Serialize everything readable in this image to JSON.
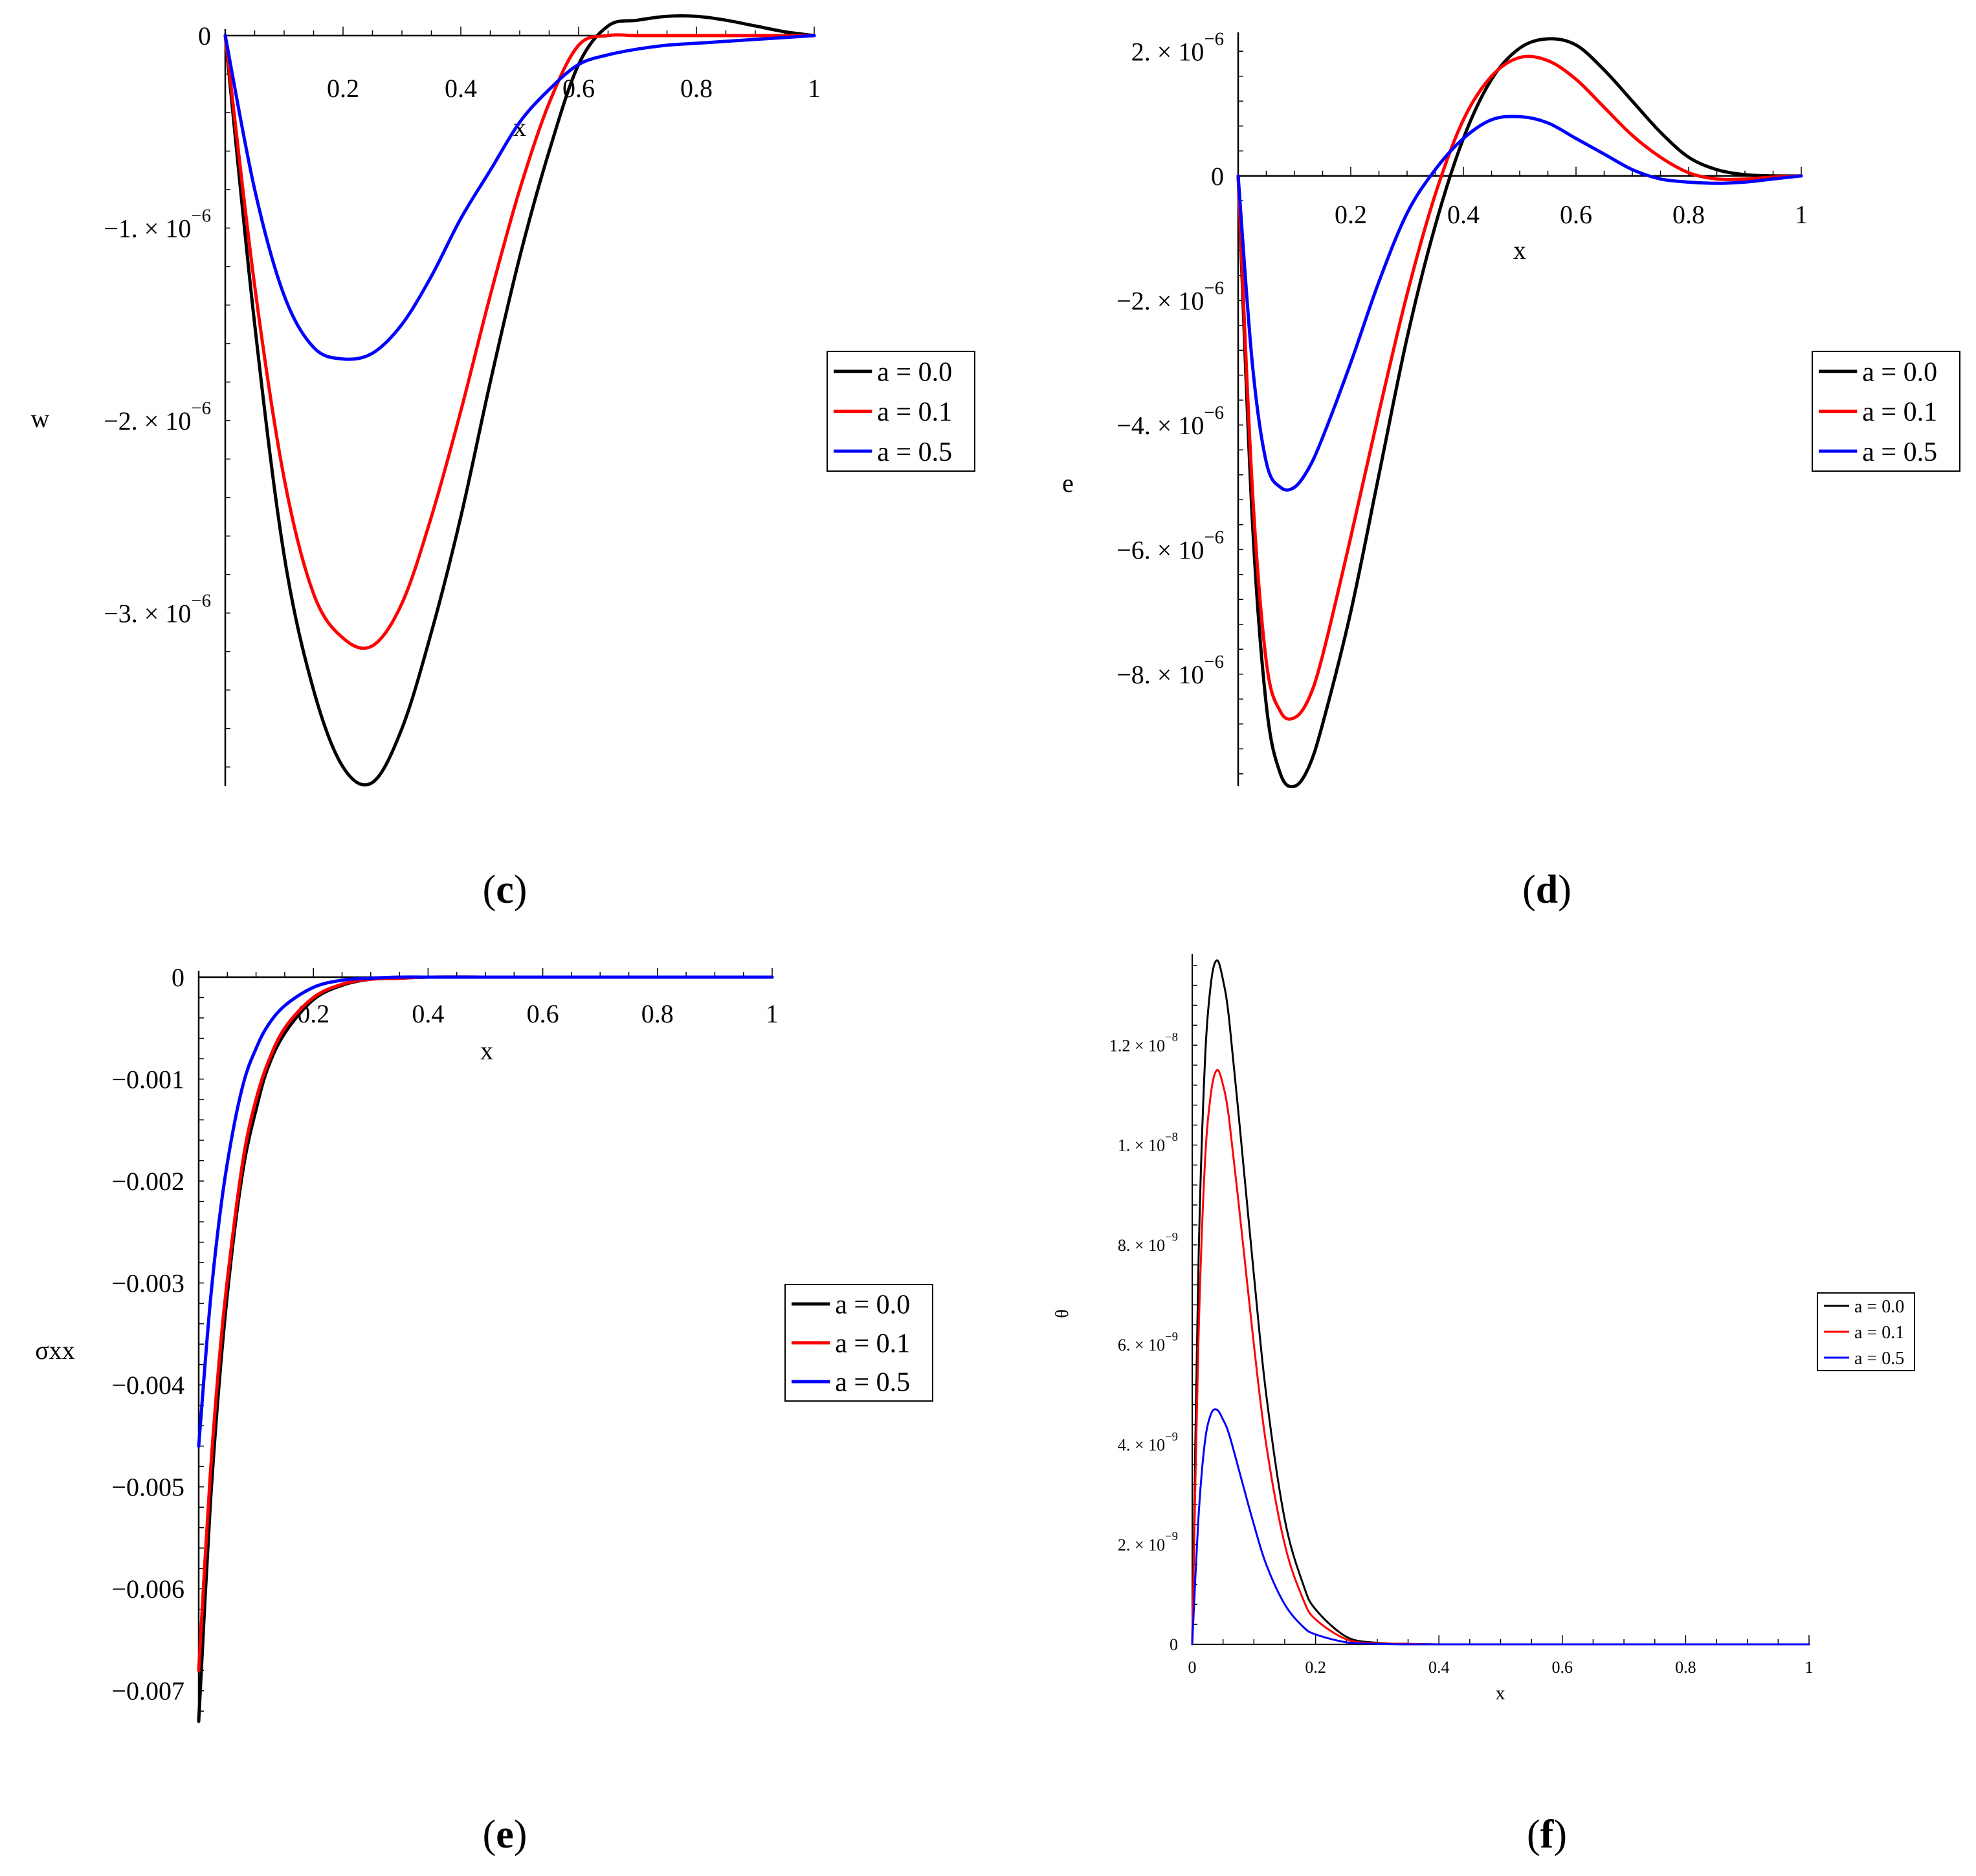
{
  "figure": {
    "panels": [
      {
        "id": "c",
        "caption_open": "(",
        "caption_letter": "c",
        "caption_close": ")"
      },
      {
        "id": "d",
        "caption_open": "(",
        "caption_letter": "d",
        "caption_close": ")"
      },
      {
        "id": "e",
        "caption_open": "(",
        "caption_letter": "e",
        "caption_close": ")"
      },
      {
        "id": "f",
        "caption_open": "(",
        "caption_letter": "f",
        "caption_close": ")"
      }
    ]
  },
  "colors": {
    "a0": "#000000",
    "a1": "#ff0000",
    "a5": "#0000ff"
  },
  "chart_data": [
    {
      "panel": "c",
      "type": "line",
      "xlabel": "x",
      "ylabel": "w",
      "xlim": [
        0,
        1
      ],
      "ylim": [
        -3.9e-06,
        0
      ],
      "xticks": [
        {
          "value": 0.2,
          "label": "0.2"
        },
        {
          "value": 0.4,
          "label": "0.4"
        },
        {
          "value": 0.6,
          "label": "0.6"
        },
        {
          "value": 0.8,
          "label": "0.8"
        },
        {
          "value": 1.0,
          "label": "1"
        }
      ],
      "yticks": [
        {
          "value": 0,
          "mant": "0",
          "exp": ""
        },
        {
          "value": -1e-06,
          "mant": "−1. × 10",
          "exp": "−6"
        },
        {
          "value": -2e-06,
          "mant": "−2. × 10",
          "exp": "−6"
        },
        {
          "value": -3e-06,
          "mant": "−3. × 10",
          "exp": "−6"
        }
      ],
      "legend": [
        "a = 0.0",
        "a = 0.1",
        "a = 0.5"
      ],
      "series": [
        {
          "name": "a = 0.0",
          "color": "#000000",
          "x": [
            0,
            0.05,
            0.1,
            0.15,
            0.2,
            0.25,
            0.3,
            0.35,
            0.4,
            0.45,
            0.5,
            0.55,
            0.6,
            0.65,
            0.7,
            0.75,
            0.8,
            0.85,
            0.9,
            0.95,
            1.0
          ],
          "y": [
            0,
            -1.5e-06,
            -2.7e-06,
            -3.4e-06,
            -3.8e-06,
            -3.88e-06,
            -3.6e-06,
            -3.1e-06,
            -2.5e-06,
            -1.8e-06,
            -1.15e-06,
            -6e-07,
            -1.5e-07,
            5e-08,
            8e-08,
            1e-07,
            1e-07,
            8e-08,
            5e-08,
            2e-08,
            0
          ]
        },
        {
          "name": "a = 0.1",
          "color": "#ff0000",
          "x": [
            0,
            0.05,
            0.1,
            0.15,
            0.2,
            0.25,
            0.3,
            0.35,
            0.4,
            0.45,
            0.5,
            0.55,
            0.6,
            0.65,
            0.7,
            0.75,
            0.8,
            0.85,
            0.9,
            0.95,
            1.0
          ],
          "y": [
            0,
            -1.3e-06,
            -2.3e-06,
            -2.9e-06,
            -3.13e-06,
            -3.17e-06,
            -2.95e-06,
            -2.5e-06,
            -1.95e-06,
            -1.35e-06,
            -8e-07,
            -3.5e-07,
            -5e-08,
            0.0,
            0.0,
            0.0,
            0.0,
            0.0,
            0.0,
            0.0,
            0
          ]
        },
        {
          "name": "a = 0.5",
          "color": "#0000ff",
          "x": [
            0,
            0.05,
            0.1,
            0.15,
            0.2,
            0.25,
            0.3,
            0.35,
            0.4,
            0.45,
            0.5,
            0.55,
            0.6,
            0.65,
            0.7,
            0.75,
            0.8,
            0.85,
            0.9,
            0.95,
            1.0
          ],
          "y": [
            0,
            -8e-07,
            -1.35e-06,
            -1.62e-06,
            -1.68e-06,
            -1.65e-06,
            -1.5e-06,
            -1.25e-06,
            -9.5e-07,
            -7e-07,
            -4.5e-07,
            -2.8e-07,
            -1.5e-07,
            -1e-07,
            -7e-08,
            -5e-08,
            -4e-08,
            -3e-08,
            -2e-08,
            -1e-08,
            0
          ]
        }
      ]
    },
    {
      "panel": "d",
      "type": "line",
      "xlabel": "x",
      "ylabel": "e",
      "xlim": [
        0,
        1
      ],
      "ylim": [
        -9.8e-06,
        2.2e-06
      ],
      "xticks": [
        {
          "value": 0.2,
          "label": "0.2"
        },
        {
          "value": 0.4,
          "label": "0.4"
        },
        {
          "value": 0.6,
          "label": "0.6"
        },
        {
          "value": 0.8,
          "label": "0.8"
        },
        {
          "value": 1.0,
          "label": "1"
        }
      ],
      "yticks": [
        {
          "value": 2e-06,
          "mant": "2. × 10",
          "exp": "−6"
        },
        {
          "value": 0,
          "mant": "0",
          "exp": ""
        },
        {
          "value": -2e-06,
          "mant": "−2. × 10",
          "exp": "−6"
        },
        {
          "value": -4e-06,
          "mant": "−4. × 10",
          "exp": "−6"
        },
        {
          "value": -6e-06,
          "mant": "−6. × 10",
          "exp": "−6"
        },
        {
          "value": -8e-06,
          "mant": "−8. × 10",
          "exp": "−6"
        }
      ],
      "legend": [
        "a = 0.0",
        "a = 0.1",
        "a = 0.5"
      ],
      "series": [
        {
          "name": "a = 0.0",
          "color": "#000000",
          "x": [
            0,
            0.025,
            0.05,
            0.075,
            0.1,
            0.125,
            0.15,
            0.2,
            0.25,
            0.3,
            0.35,
            0.4,
            0.45,
            0.5,
            0.55,
            0.6,
            0.65,
            0.7,
            0.75,
            0.8,
            0.85,
            0.9,
            0.95,
            1.0
          ],
          "y": [
            0,
            -5.5e-06,
            -8.5e-06,
            -9.6e-06,
            -9.8e-06,
            -9.5e-06,
            -8.8e-06,
            -7e-06,
            -4.8e-06,
            -2.6e-06,
            -8e-07,
            6e-07,
            1.55e-06,
            2.05e-06,
            2.2e-06,
            2.1e-06,
            1.7e-06,
            1.2e-06,
            7e-07,
            3e-07,
            1e-07,
            2e-08,
            0.0,
            0
          ]
        },
        {
          "name": "a = 0.1",
          "color": "#ff0000",
          "x": [
            0,
            0.025,
            0.05,
            0.075,
            0.1,
            0.125,
            0.15,
            0.2,
            0.25,
            0.3,
            0.35,
            0.4,
            0.45,
            0.5,
            0.55,
            0.6,
            0.65,
            0.7,
            0.75,
            0.8,
            0.85,
            0.9,
            0.95,
            1.0
          ],
          "y": [
            0,
            -5e-06,
            -7.8e-06,
            -8.6e-06,
            -8.7e-06,
            -8.4e-06,
            -7.7e-06,
            -5.8e-06,
            -3.8e-06,
            -1.9e-06,
            -3e-07,
            9e-07,
            1.6e-06,
            1.9e-06,
            1.85e-06,
            1.55e-06,
            1.1e-06,
            6.5e-07,
            3e-07,
            5e-08,
            -5e-08,
            -5e-08,
            -2e-08,
            0
          ]
        },
        {
          "name": "a = 0.5",
          "color": "#0000ff",
          "x": [
            0,
            0.025,
            0.05,
            0.075,
            0.1,
            0.125,
            0.15,
            0.2,
            0.25,
            0.3,
            0.35,
            0.4,
            0.45,
            0.5,
            0.55,
            0.6,
            0.65,
            0.7,
            0.75,
            0.8,
            0.85,
            0.9,
            0.95,
            1.0
          ],
          "y": [
            0,
            -3e-06,
            -4.6e-06,
            -5e-06,
            -5e-06,
            -4.7e-06,
            -4.2e-06,
            -3e-06,
            -1.7e-06,
            -6e-07,
            1e-07,
            6e-07,
            9e-07,
            9.5e-07,
            8.5e-07,
            6e-07,
            3.5e-07,
            1e-07,
            -5e-08,
            -1e-07,
            -1.2e-07,
            -1e-07,
            -5e-08,
            0
          ]
        }
      ]
    },
    {
      "panel": "e",
      "type": "line",
      "xlabel": "x",
      "ylabel": "σxx",
      "xlim": [
        0,
        1
      ],
      "ylim": [
        -0.0073,
        0
      ],
      "xticks": [
        {
          "value": 0.2,
          "label": "0.2"
        },
        {
          "value": 0.4,
          "label": "0.4"
        },
        {
          "value": 0.6,
          "label": "0.6"
        },
        {
          "value": 0.8,
          "label": "0.8"
        },
        {
          "value": 1.0,
          "label": "1"
        }
      ],
      "yticks": [
        {
          "value": 0,
          "mant": "0",
          "exp": ""
        },
        {
          "value": -0.001,
          "mant": "−0.001",
          "exp": ""
        },
        {
          "value": -0.002,
          "mant": "−0.002",
          "exp": ""
        },
        {
          "value": -0.003,
          "mant": "−0.003",
          "exp": ""
        },
        {
          "value": -0.004,
          "mant": "−0.004",
          "exp": ""
        },
        {
          "value": -0.005,
          "mant": "−0.005",
          "exp": ""
        },
        {
          "value": -0.006,
          "mant": "−0.006",
          "exp": ""
        },
        {
          "value": -0.007,
          "mant": "−0.007",
          "exp": ""
        }
      ],
      "legend": [
        "a = 0.0",
        "a = 0.1",
        "a = 0.5"
      ],
      "series": [
        {
          "name": "a = 0.0",
          "color": "#000000",
          "x": [
            0,
            0.02,
            0.04,
            0.06,
            0.08,
            0.1,
            0.12,
            0.15,
            0.2,
            0.25,
            0.3,
            0.35,
            0.4,
            0.5,
            0.6,
            0.8,
            1.0
          ],
          "y": [
            -0.0073,
            -0.0052,
            -0.0037,
            -0.0026,
            -0.0018,
            -0.0013,
            -0.0009,
            -0.00055,
            -0.00022,
            -8e-05,
            -2e-05,
            -1e-05,
            0,
            0,
            0,
            0,
            0
          ]
        },
        {
          "name": "a = 0.1",
          "color": "#ff0000",
          "x": [
            0,
            0.02,
            0.04,
            0.06,
            0.08,
            0.1,
            0.12,
            0.15,
            0.2,
            0.25,
            0.3,
            0.35,
            0.4,
            0.5,
            0.6,
            0.8,
            1.0
          ],
          "y": [
            -0.0068,
            -0.0049,
            -0.0035,
            -0.0025,
            -0.0017,
            -0.0012,
            -0.00085,
            -0.0005,
            -0.0002,
            -7e-05,
            -2e-05,
            -1e-05,
            0,
            0,
            0,
            0,
            0
          ]
        },
        {
          "name": "a = 0.5",
          "color": "#0000ff",
          "x": [
            0,
            0.02,
            0.04,
            0.06,
            0.08,
            0.1,
            0.12,
            0.15,
            0.2,
            0.25,
            0.3,
            0.35,
            0.4,
            0.5,
            0.6,
            0.8,
            1.0
          ],
          "y": [
            -0.0046,
            -0.0032,
            -0.0022,
            -0.0015,
            -0.001,
            -0.0007,
            -0.00048,
            -0.00028,
            -0.0001,
            -3e-05,
            -1e-05,
            0,
            0,
            0,
            0,
            0,
            0
          ]
        }
      ]
    },
    {
      "panel": "f",
      "type": "line",
      "xlabel": "x",
      "ylabel": "θ",
      "xlim": [
        0,
        1
      ],
      "ylim": [
        0,
        1.37e-08
      ],
      "xticks": [
        {
          "value": 0,
          "label": "0"
        },
        {
          "value": 0.2,
          "label": "0.2"
        },
        {
          "value": 0.4,
          "label": "0.4"
        },
        {
          "value": 0.6,
          "label": "0.6"
        },
        {
          "value": 0.8,
          "label": "0.8"
        },
        {
          "value": 1.0,
          "label": "1"
        }
      ],
      "yticks": [
        {
          "value": 0,
          "mant": "0",
          "exp": ""
        },
        {
          "value": 2e-09,
          "mant": "2. × 10",
          "exp": "−9"
        },
        {
          "value": 4e-09,
          "mant": "4. × 10",
          "exp": "−9"
        },
        {
          "value": 6e-09,
          "mant": "6. × 10",
          "exp": "−9"
        },
        {
          "value": 8e-09,
          "mant": "8. × 10",
          "exp": "−9"
        },
        {
          "value": 1e-08,
          "mant": "1. × 10",
          "exp": "−8"
        },
        {
          "value": 1.2e-08,
          "mant": "1.2 × 10",
          "exp": "−8"
        }
      ],
      "legend": [
        "a = 0.0",
        "a = 0.1",
        "a = 0.5"
      ],
      "series": [
        {
          "name": "a = 0.0",
          "color": "#000000",
          "x": [
            0,
            0.01,
            0.02,
            0.03,
            0.04,
            0.05,
            0.06,
            0.08,
            0.1,
            0.12,
            0.15,
            0.18,
            0.2,
            0.25,
            0.3,
            0.35,
            0.4,
            0.5,
            0.6,
            0.8,
            1.0
          ],
          "y": [
            0,
            7.5e-09,
            1.15e-08,
            1.32e-08,
            1.37e-08,
            1.33e-08,
            1.25e-08,
            1e-08,
            7.4e-09,
            5e-09,
            2.5e-09,
            1.2e-09,
            7e-10,
            1.5e-10,
            3e-11,
            1e-11,
            0,
            0,
            0,
            0,
            0
          ]
        },
        {
          "name": "a = 0.1",
          "color": "#ff0000",
          "x": [
            0,
            0.01,
            0.02,
            0.03,
            0.04,
            0.05,
            0.06,
            0.08,
            0.1,
            0.12,
            0.15,
            0.18,
            0.2,
            0.25,
            0.3,
            0.35,
            0.4,
            0.5,
            0.6,
            0.8,
            1.0
          ],
          "y": [
            0,
            6e-09,
            9.5e-09,
            1.1e-08,
            1.15e-08,
            1.12e-08,
            1.05e-08,
            8.3e-09,
            6e-09,
            4e-09,
            2e-09,
            9e-10,
            5e-10,
            1e-10,
            2e-11,
            1e-11,
            0,
            0,
            0,
            0,
            0
          ]
        },
        {
          "name": "a = 0.5",
          "color": "#0000ff",
          "x": [
            0,
            0.01,
            0.02,
            0.03,
            0.04,
            0.05,
            0.06,
            0.08,
            0.1,
            0.12,
            0.15,
            0.18,
            0.2,
            0.25,
            0.3,
            0.35,
            0.4,
            0.5,
            0.6,
            0.8,
            1.0
          ],
          "y": [
            0,
            2.5e-09,
            4e-09,
            4.6e-09,
            4.7e-09,
            4.5e-09,
            4.2e-09,
            3.3e-09,
            2.4e-09,
            1.6e-09,
            8e-10,
            3.5e-10,
            2e-10,
            4e-11,
            1e-11,
            0,
            0,
            0,
            0,
            0,
            0
          ]
        }
      ]
    }
  ]
}
